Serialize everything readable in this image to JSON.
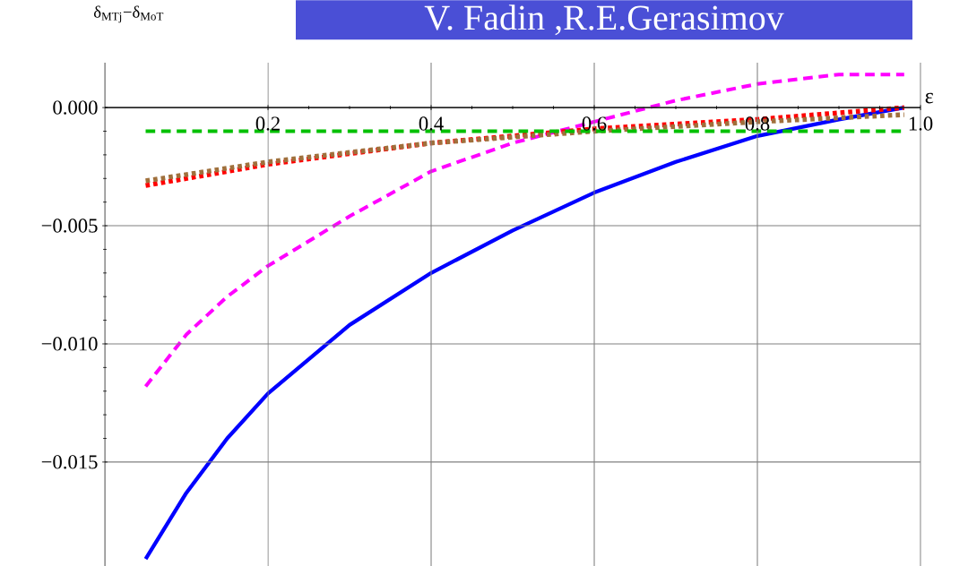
{
  "chart_data": {
    "type": "line",
    "title": "V. Fadin ,R.E.Gerasimov",
    "xlabel": "ε",
    "ylabel": "δ$_{MTj}$−δ$_{MoT}$",
    "xlim": [
      0,
      1.0
    ],
    "ylim": [
      -0.0194,
      0.0019
    ],
    "xticks": [
      0.2,
      0.4,
      0.6,
      0.8,
      {
        "value": 1.0,
        "label": "1.0"
      }
    ],
    "yticks": [
      {
        "value": -0.015,
        "label": "−0.015"
      },
      {
        "value": -0.01,
        "label": "−0.010"
      },
      {
        "value": -0.005,
        "label": "−0.005"
      },
      {
        "value": 0,
        "label": "0.000"
      }
    ],
    "grid": true,
    "series": [
      {
        "color": "#0000ff",
        "line_style": "solid",
        "x": [
          0.05,
          0.1,
          0.15,
          0.2,
          0.3,
          0.4,
          0.5,
          0.6,
          0.7,
          0.8,
          0.9,
          0.98
        ],
        "values": [
          -0.0191,
          -0.0163,
          -0.014,
          -0.0121,
          -0.0092,
          -0.007,
          -0.0052,
          -0.0036,
          -0.0023,
          -0.0012,
          -0.0005,
          0.0
        ]
      },
      {
        "color": "#ff00ff",
        "line_style": "dashed",
        "x": [
          0.05,
          0.1,
          0.15,
          0.2,
          0.3,
          0.4,
          0.5,
          0.6,
          0.7,
          0.8,
          0.9,
          0.98
        ],
        "values": [
          -0.0118,
          -0.0096,
          -0.008,
          -0.0067,
          -0.0046,
          -0.0027,
          -0.0015,
          -0.0006,
          0.0003,
          0.001,
          0.0014,
          0.0014
        ]
      },
      {
        "color": "#ff0000",
        "line_style": "dotted",
        "x": [
          0.05,
          0.2,
          0.4,
          0.6,
          0.8,
          0.98
        ],
        "values": [
          -0.0033,
          -0.0024,
          -0.0015,
          -0.0009,
          -0.0005,
          0.0
        ]
      },
      {
        "color": "#a0703c",
        "line_style": "dotted",
        "x": [
          0.05,
          0.2,
          0.4,
          0.6,
          0.8,
          0.98
        ],
        "values": [
          -0.0031,
          -0.0023,
          -0.0015,
          -0.001,
          -0.0006,
          -0.0003
        ]
      },
      {
        "color": "#00c000",
        "line_style": "dashed",
        "x": [
          0.05,
          0.98
        ],
        "values": [
          -0.001,
          -0.001
        ]
      }
    ]
  }
}
